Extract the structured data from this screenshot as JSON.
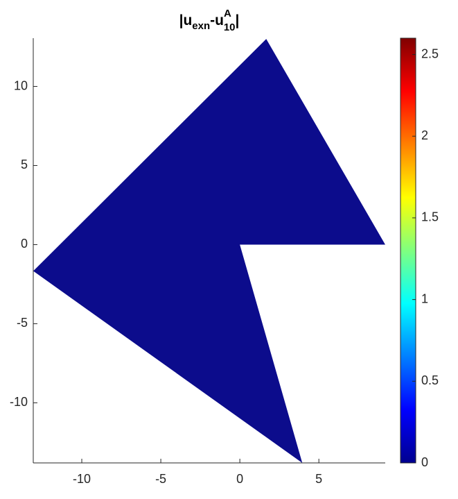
{
  "chart_data": {
    "type": "patch",
    "title": [
      "|u",
      "exn",
      "-u",
      "A",
      "10",
      "|"
    ],
    "x": [
      1.67,
      9.2,
      0,
      3.95,
      -13.07
    ],
    "y": [
      13,
      0,
      0,
      -13.8,
      -1.67
    ],
    "color": "#0c0c8c",
    "xlim": [
      -13.07,
      9.2
    ],
    "xticks": [
      -10,
      -5,
      0,
      5
    ],
    "ylim": [
      -13.8,
      13.05
    ],
    "yticks": [
      -10,
      -5,
      0,
      5,
      10
    ],
    "clim": [
      0,
      2.6
    ],
    "colorbar_ticks": [
      0,
      0.5,
      1,
      1.5,
      2,
      2.5
    ]
  }
}
